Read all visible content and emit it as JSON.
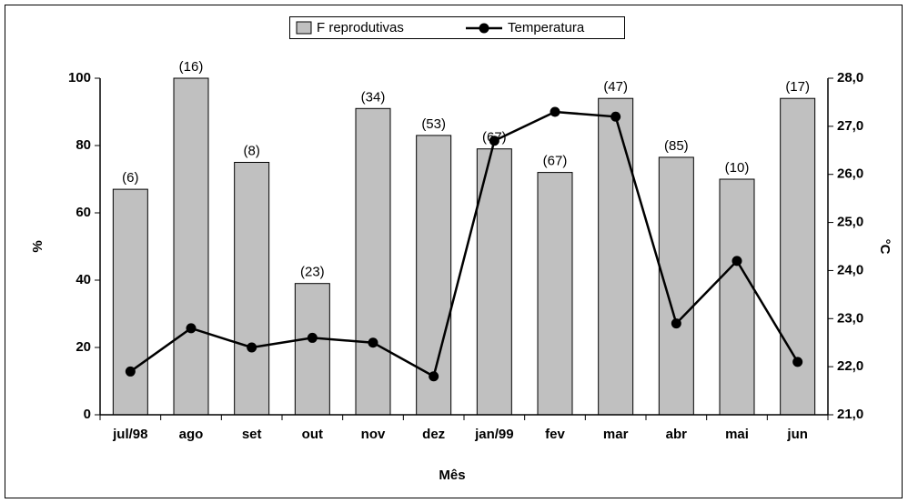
{
  "chart_data": {
    "type": "bar_line",
    "categories": [
      "jul/98",
      "ago",
      "set",
      "out",
      "nov",
      "dez",
      "jan/99",
      "fev",
      "mar",
      "abr",
      "mai",
      "jun"
    ],
    "series": [
      {
        "name": "F reprodutivas",
        "color": "#c0c0c0",
        "values": [
          67,
          100,
          75,
          39,
          91,
          83,
          79,
          72,
          94,
          76.5,
          70,
          94
        ],
        "bar_labels": [
          "(6)",
          "(16)",
          "(8)",
          "(23)",
          "(34)",
          "(53)",
          "(67)",
          "(67)",
          "(47)",
          "(85)",
          "(10)",
          "(17)"
        ]
      },
      {
        "name": "Temperatura",
        "color": "#000000",
        "axis": "y2",
        "values": [
          21.9,
          22.8,
          22.4,
          22.6,
          22.5,
          21.8,
          26.7,
          27.3,
          27.2,
          22.9,
          24.2,
          22.1
        ]
      }
    ],
    "xlabel": "Mês",
    "ylabel": "%",
    "y2label": "°C",
    "ylim": [
      0,
      100
    ],
    "yticks": [
      0,
      20,
      40,
      60,
      80,
      100
    ],
    "y2lim": [
      21,
      28
    ],
    "y2ticks": [
      {
        "value": 21,
        "label": "21,0"
      },
      {
        "value": 22,
        "label": "22,0"
      },
      {
        "value": 23,
        "label": "23,0"
      },
      {
        "value": 24,
        "label": "24,0"
      },
      {
        "value": 25,
        "label": "25,0"
      },
      {
        "value": 26,
        "label": "26,0"
      },
      {
        "value": 27,
        "label": "27,0"
      },
      {
        "value": 28,
        "label": "28,0"
      }
    ],
    "legend": "top"
  }
}
